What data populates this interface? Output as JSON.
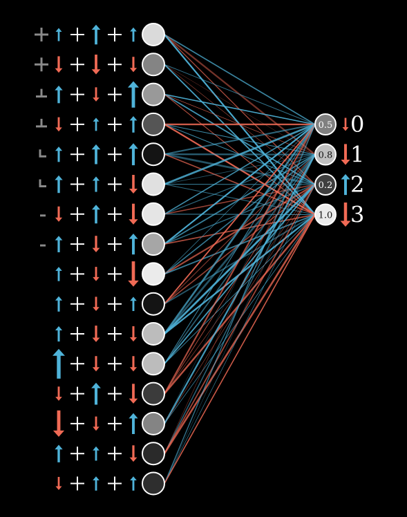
{
  "colors": {
    "background": "#000000",
    "positive": "#4fb3d9",
    "negative": "#f06a55",
    "plus_sign": "#ffffff",
    "node_stroke": "#ffffff",
    "pattern_glyph": "#8a8a8a"
  },
  "hidden_layer": {
    "rows": [
      {
        "glyph": "cross-icon",
        "nudge_a": 0.25,
        "nudge_b": 0.55,
        "nudge_c": 0.3,
        "activation": 0.92
      },
      {
        "glyph": "cross-icon",
        "nudge_a": -0.4,
        "nudge_b": -0.55,
        "nudge_c": -0.35,
        "activation": 0.52
      },
      {
        "glyph": "tee-icon",
        "nudge_a": 0.45,
        "nudge_b": -0.3,
        "nudge_c": 0.85,
        "activation": 0.62
      },
      {
        "glyph": "tee-icon",
        "nudge_a": -0.3,
        "nudge_b": 0.25,
        "nudge_c": 0.4,
        "activation": 0.3
      },
      {
        "glyph": "corner-icon",
        "nudge_a": 0.35,
        "nudge_b": 0.55,
        "nudge_c": 0.65,
        "activation": 0.0
      },
      {
        "glyph": "corner-icon",
        "nudge_a": 0.45,
        "nudge_b": 0.35,
        "nudge_c": -0.5,
        "activation": 0.95
      },
      {
        "glyph": "dash-icon",
        "nudge_a": -0.35,
        "nudge_b": 0.5,
        "nudge_c": -0.6,
        "activation": 0.97
      },
      {
        "glyph": "dash-icon",
        "nudge_a": 0.4,
        "nudge_b": -0.4,
        "nudge_c": 0.6,
        "activation": 0.68
      },
      {
        "glyph": "none",
        "nudge_a": 0.3,
        "nudge_b": -0.3,
        "nudge_c": -0.8,
        "activation": 1.0
      },
      {
        "glyph": "none",
        "nudge_a": 0.35,
        "nudge_b": -0.3,
        "nudge_c": 0.3,
        "activation": 0.0
      },
      {
        "glyph": "none",
        "nudge_a": 0.35,
        "nudge_b": -0.4,
        "nudge_c": -0.35,
        "activation": 0.78
      },
      {
        "glyph": "none",
        "nudge_a": 1.0,
        "nudge_b": -0.35,
        "nudge_c": -0.35,
        "activation": 0.78
      },
      {
        "glyph": "none",
        "nudge_a": -0.3,
        "nudge_b": 0.65,
        "nudge_c": -0.55,
        "activation": 0.18
      },
      {
        "glyph": "none",
        "nudge_a": -0.85,
        "nudge_b": -0.3,
        "nudge_c": 0.6,
        "activation": 0.52
      },
      {
        "glyph": "none",
        "nudge_a": 0.45,
        "nudge_b": 0.3,
        "nudge_c": -0.4,
        "activation": 0.1
      },
      {
        "glyph": "none",
        "nudge_a": -0.25,
        "nudge_b": 0.3,
        "nudge_c": 0.3,
        "activation": 0.12
      }
    ]
  },
  "output_layer": {
    "nodes": [
      {
        "value_text": "0.5",
        "activation": 0.5,
        "nudge": -0.25,
        "label": "0"
      },
      {
        "value_text": "0.8",
        "activation": 0.8,
        "nudge": -0.6,
        "label": "1"
      },
      {
        "value_text": "0.2",
        "activation": 0.2,
        "nudge": 0.6,
        "label": "2"
      },
      {
        "value_text": "1.0",
        "activation": 1.0,
        "nudge": -0.75,
        "label": "3"
      }
    ]
  }
}
